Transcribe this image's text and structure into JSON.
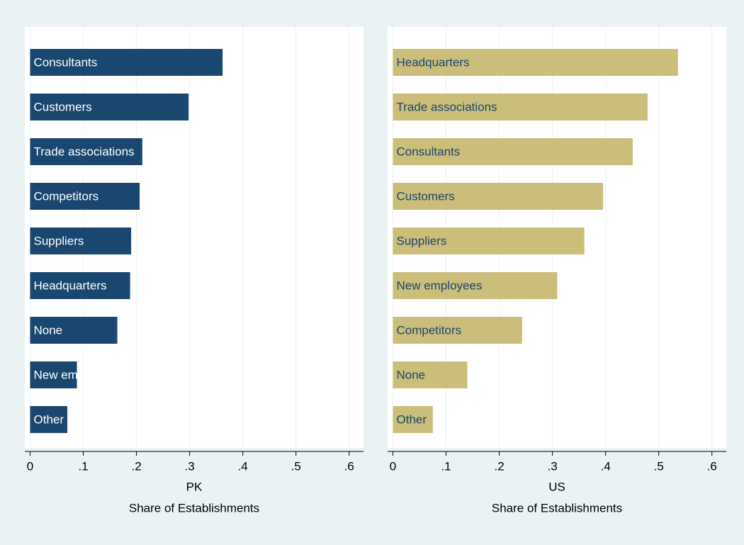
{
  "chart_data": [
    {
      "type": "bar",
      "orientation": "horizontal",
      "title": "PK",
      "xlabel": "Share of Establishments",
      "categories": [
        "Consultants",
        "Customers",
        "Trade associations",
        "Competitors",
        "Suppliers",
        "Headquarters",
        "None",
        "New employees",
        "Other"
      ],
      "values": [
        0.362,
        0.298,
        0.211,
        0.206,
        0.19,
        0.188,
        0.164,
        0.088,
        0.07
      ],
      "color": "#1a476f",
      "label_color": "#ffffff",
      "xlim": [
        -0.01,
        0.627
      ],
      "xticks": [
        0,
        {
          "value": 0.1,
          "label": ".1"
        },
        {
          "value": 0.2,
          "label": ".2"
        },
        {
          "value": 0.3,
          "label": ".3"
        },
        {
          "value": 0.4,
          "label": ".4"
        },
        {
          "value": 0.5,
          "label": ".5"
        },
        {
          "value": 0.6,
          "label": ".6"
        }
      ],
      "grid": true
    },
    {
      "type": "bar",
      "orientation": "horizontal",
      "title": "US",
      "xlabel": "Share of Establishments",
      "categories": [
        "Headquarters",
        "Trade associations",
        "Consultants",
        "Customers",
        "Suppliers",
        "New employees",
        "Competitors",
        "None",
        "Other"
      ],
      "values": [
        0.536,
        0.479,
        0.451,
        0.395,
        0.36,
        0.309,
        0.243,
        0.14,
        0.075
      ],
      "color": "#cbbd7a",
      "label_color": "#1a476f",
      "xlim": [
        -0.01,
        0.627
      ],
      "xticks": [
        0,
        {
          "value": 0.1,
          "label": ".1"
        },
        {
          "value": 0.2,
          "label": ".2"
        },
        {
          "value": 0.3,
          "label": ".3"
        },
        {
          "value": 0.4,
          "label": ".4"
        },
        {
          "value": 0.5,
          "label": ".5"
        },
        {
          "value": 0.6,
          "label": ".6"
        }
      ],
      "grid": true
    }
  ]
}
